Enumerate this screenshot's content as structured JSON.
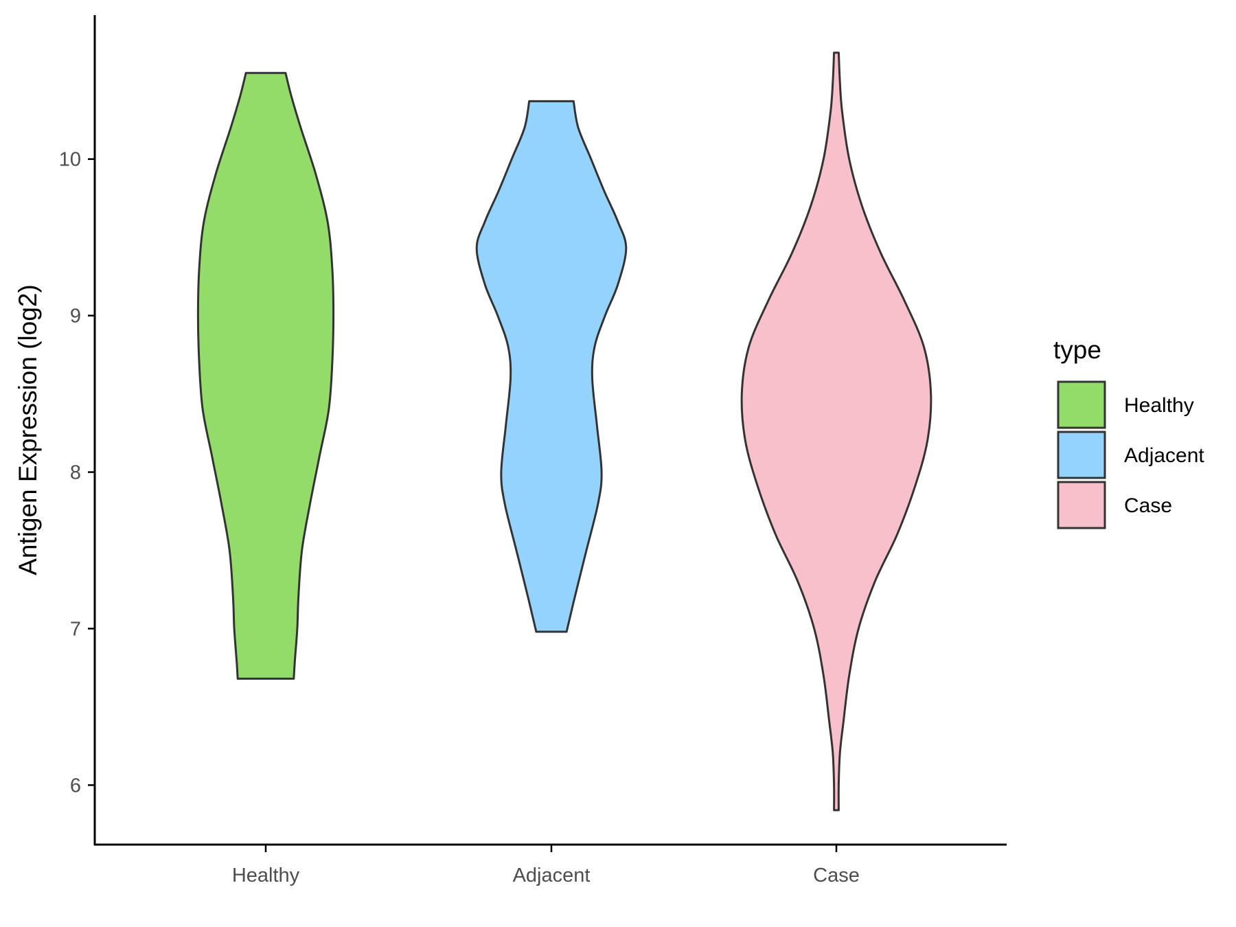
{
  "chart_data": {
    "type": "violin",
    "title": "",
    "xlabel": "",
    "ylabel": "Antigen Expression (log2)",
    "categories": [
      "Healthy",
      "Adjacent",
      "Case"
    ],
    "yticks": [
      6,
      7,
      8,
      9,
      10
    ],
    "ylim": [
      5.62,
      10.92
    ],
    "grid": false,
    "legend": {
      "title": "type",
      "position": "right",
      "entries": [
        "Healthy",
        "Adjacent",
        "Case"
      ]
    },
    "colors": {
      "Healthy": "#93dc6a",
      "Adjacent": "#94d3fd",
      "Case": "#f7c0cb",
      "outline": "#333333",
      "axis": "#000000"
    },
    "series": [
      {
        "category": "Healthy",
        "min": 6.68,
        "max": 10.55,
        "density": [
          [
            6.68,
            0.24
          ],
          [
            6.8,
            0.25
          ],
          [
            7.0,
            0.27
          ],
          [
            7.2,
            0.28
          ],
          [
            7.5,
            0.31
          ],
          [
            7.8,
            0.38
          ],
          [
            8.1,
            0.46
          ],
          [
            8.4,
            0.54
          ],
          [
            8.7,
            0.57
          ],
          [
            9.0,
            0.58
          ],
          [
            9.3,
            0.57
          ],
          [
            9.6,
            0.53
          ],
          [
            9.9,
            0.43
          ],
          [
            10.2,
            0.3
          ],
          [
            10.4,
            0.22
          ],
          [
            10.55,
            0.17
          ]
        ]
      },
      {
        "category": "Adjacent",
        "min": 6.98,
        "max": 10.37,
        "density": [
          [
            6.98,
            0.13
          ],
          [
            7.2,
            0.2
          ],
          [
            7.5,
            0.3
          ],
          [
            7.8,
            0.4
          ],
          [
            8.0,
            0.43
          ],
          [
            8.3,
            0.39
          ],
          [
            8.6,
            0.35
          ],
          [
            8.8,
            0.37
          ],
          [
            9.0,
            0.46
          ],
          [
            9.2,
            0.57
          ],
          [
            9.43,
            0.64
          ],
          [
            9.6,
            0.57
          ],
          [
            9.8,
            0.45
          ],
          [
            10.0,
            0.34
          ],
          [
            10.2,
            0.23
          ],
          [
            10.37,
            0.19
          ]
        ]
      },
      {
        "category": "Case",
        "min": 5.84,
        "max": 10.68,
        "density": [
          [
            5.84,
            0.02
          ],
          [
            6.0,
            0.02
          ],
          [
            6.2,
            0.03
          ],
          [
            6.4,
            0.06
          ],
          [
            6.7,
            0.11
          ],
          [
            7.0,
            0.19
          ],
          [
            7.3,
            0.33
          ],
          [
            7.6,
            0.52
          ],
          [
            7.9,
            0.67
          ],
          [
            8.2,
            0.78
          ],
          [
            8.5,
            0.81
          ],
          [
            8.8,
            0.75
          ],
          [
            9.1,
            0.58
          ],
          [
            9.4,
            0.38
          ],
          [
            9.7,
            0.22
          ],
          [
            10.0,
            0.11
          ],
          [
            10.3,
            0.05
          ],
          [
            10.5,
            0.03
          ],
          [
            10.68,
            0.02
          ]
        ]
      }
    ]
  }
}
